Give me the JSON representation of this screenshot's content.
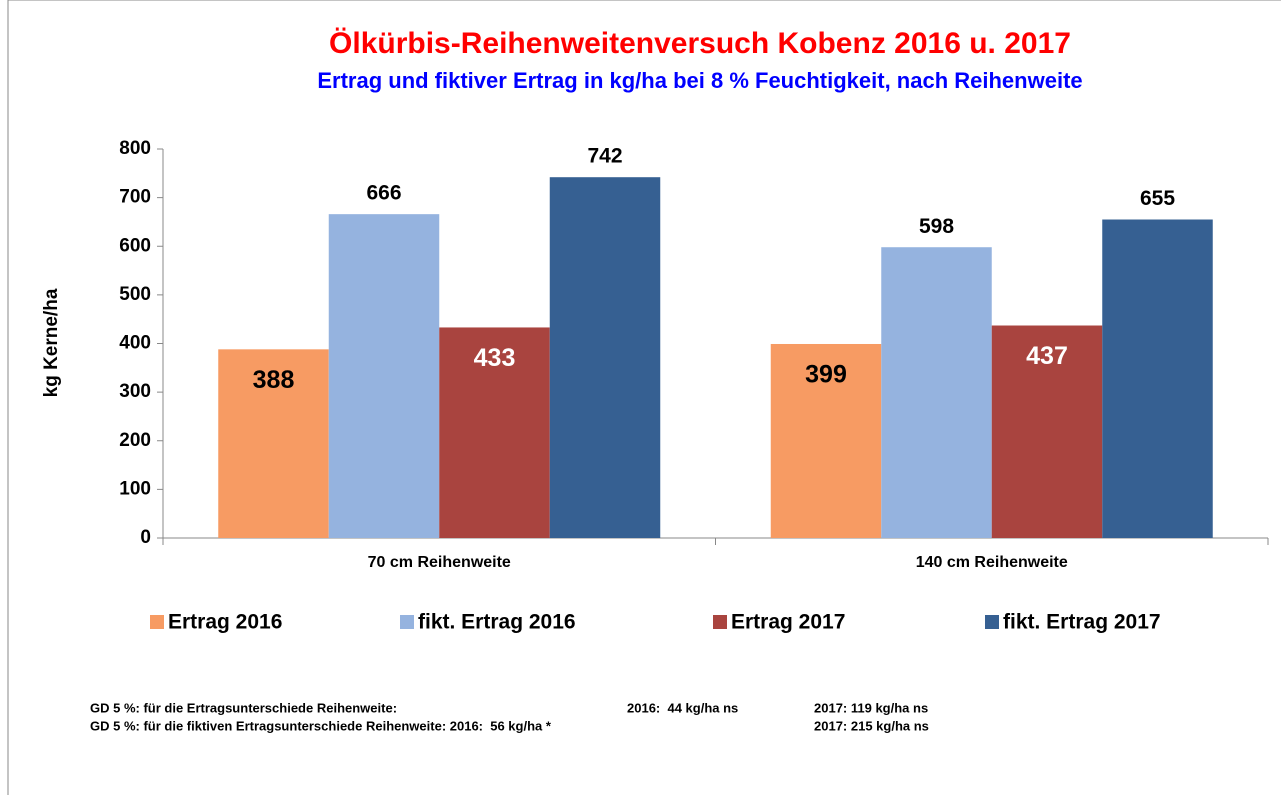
{
  "chart_data": {
    "type": "bar",
    "title": "Ölkürbis-Reihenweitenversuch Kobenz 2016 u. 2017",
    "subtitle": "Ertrag und fiktiver Ertrag in kg/ha bei 8 % Feuchtigkeit, nach Reihenweite",
    "y_label": "kg Kerne/ha",
    "categories": [
      "70 cm Reihenweite",
      "140 cm Reihenweite"
    ],
    "series": [
      {
        "name": "Ertrag 2016",
        "color": "#f79b63",
        "values": [
          388,
          399
        ]
      },
      {
        "name": "fikt. Ertrag 2016",
        "color": "#95b3df",
        "values": [
          666,
          598
        ]
      },
      {
        "name": "Ertrag 2017",
        "color": "#a9443f",
        "values": [
          433,
          437
        ]
      },
      {
        "name": "fikt. Ertrag 2017",
        "color": "#366092",
        "values": [
          742,
          655
        ]
      }
    ],
    "ylim": [
      0,
      800
    ],
    "yticks": [
      0,
      100,
      200,
      300,
      400,
      500,
      600,
      700,
      800
    ],
    "grid": false,
    "legend": "bottom",
    "notes": [
      [
        "GD 5 %: für die Ertragsunterschiede Reihenweite:",
        "2016:  44 kg/ha ns",
        "2017: 119 kg/ha ns"
      ],
      [
        "GD 5 %: für die fiktiven Ertragsunterschiede Reihenweite: 2016:  56 kg/ha *",
        "2017: 215 kg/ha ns"
      ]
    ]
  }
}
